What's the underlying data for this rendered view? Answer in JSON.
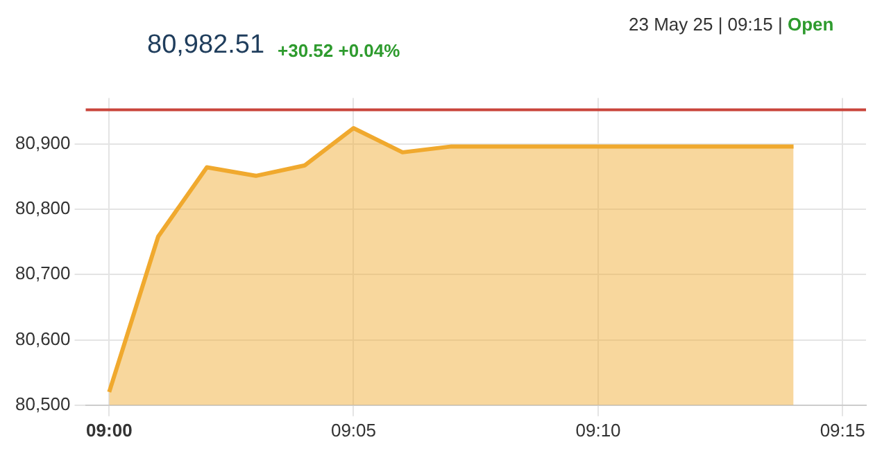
{
  "chart_data": {
    "type": "area",
    "title": "80,982.51",
    "annotations": [
      "+30.52 +0.04%",
      "23 May 25 | 09:15 |",
      "Open"
    ],
    "x": [
      9.0,
      9.0167,
      9.0333,
      9.05,
      9.0667,
      9.0833,
      9.1,
      9.1167,
      9.1333,
      9.15,
      9.1667,
      9.1833,
      9.2,
      9.2167,
      9.2333
    ],
    "series": [
      {
        "color": "#f0a92e",
        "values": [
          80520,
          80758,
          80864,
          80851,
          80867,
          80924,
          80887,
          80896,
          80896,
          80896,
          80896,
          80896,
          80896,
          80896,
          80896
        ]
      }
    ],
    "xlim": [
      8.992,
      9.258
    ],
    "xticks": [
      {
        "value": 9.0,
        "label": "09:00"
      },
      {
        "value": 9.0833,
        "label": "09:05"
      },
      {
        "value": 9.1667,
        "label": "09:10"
      },
      {
        "value": 9.25,
        "label": "09:15"
      }
    ],
    "ylim": [
      80500,
      80970
    ],
    "yticks": [
      {
        "value": 80500,
        "label": "80,500"
      },
      {
        "value": 80600,
        "label": "80,600"
      },
      {
        "value": 80700,
        "label": "80,700"
      },
      {
        "value": 80800,
        "label": "80,800"
      },
      {
        "value": 80900,
        "label": "80,900"
      }
    ],
    "ref_lines": [
      {
        "axis": "y",
        "value": 80952,
        "color": "#c9453b"
      }
    ],
    "grid": true,
    "legend": false,
    "marker": "none"
  }
}
